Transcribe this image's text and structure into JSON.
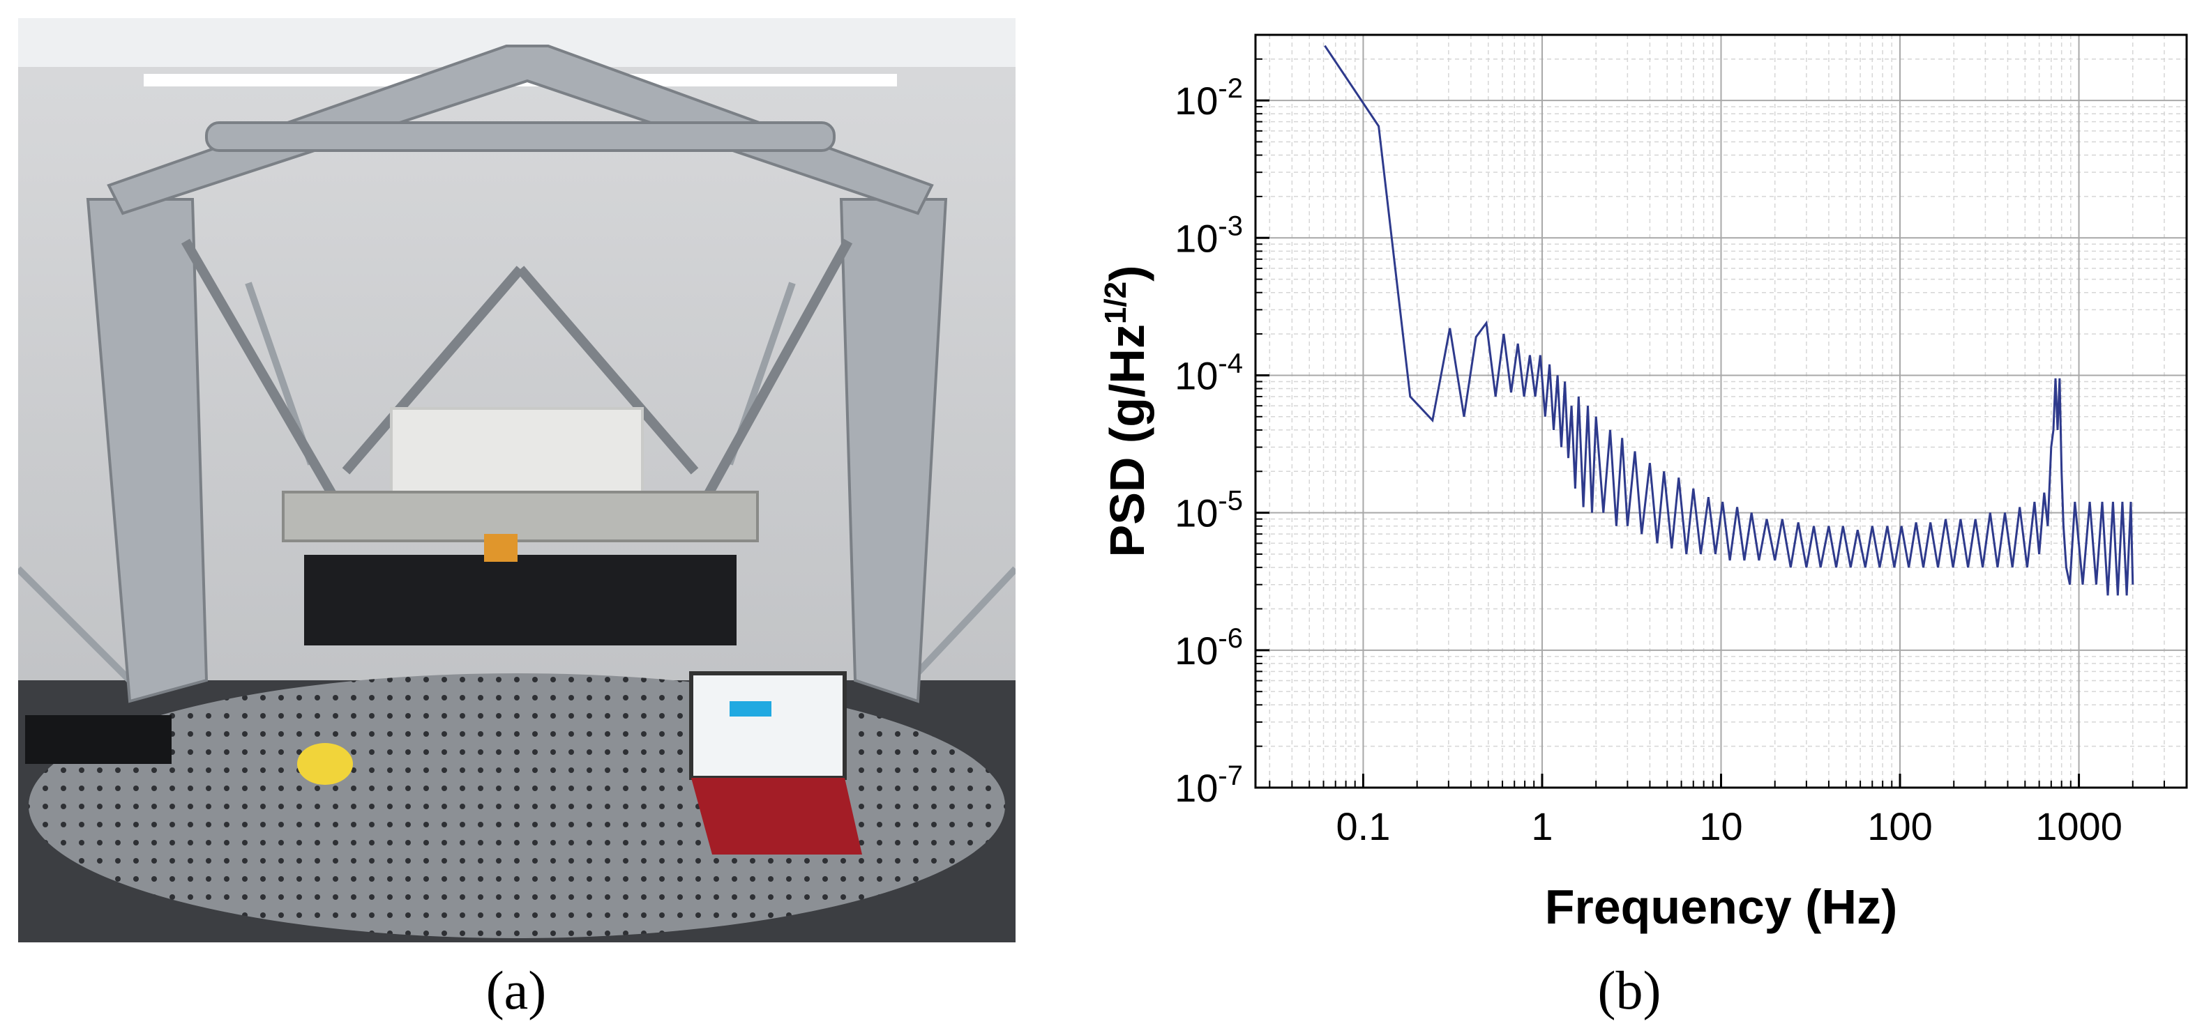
{
  "panel_labels": {
    "a": "(a)",
    "b": "(b)"
  },
  "chart_data": {
    "type": "line",
    "title": "",
    "xlabel": "Frequency (Hz)",
    "ylabel_main": "PSD (g/Hz",
    "ylabel_sup": "1/2",
    "ylabel_close": ")",
    "x_scale": "log",
    "y_scale": "log",
    "xlim": [
      0.025,
      4000
    ],
    "ylim": [
      1e-07,
      0.03
    ],
    "x_ticks": [
      0.1,
      1,
      10,
      100,
      1000
    ],
    "x_tick_labels": [
      "0.1",
      "1",
      "10",
      "100",
      "1000"
    ],
    "y_ticks": [
      1e-07,
      1e-06,
      1e-05,
      0.0001,
      0.001,
      0.01
    ],
    "y_tick_labels": [
      {
        "base": "10",
        "exp": "-7"
      },
      {
        "base": "10",
        "exp": "-6"
      },
      {
        "base": "10",
        "exp": "-5"
      },
      {
        "base": "10",
        "exp": "-4"
      },
      {
        "base": "10",
        "exp": "-3"
      },
      {
        "base": "10",
        "exp": "-2"
      }
    ],
    "grid": true,
    "line_color": "#2e3a8c",
    "series": [
      {
        "x": [
          0.061,
          0.122,
          0.183,
          0.244,
          0.305,
          0.366,
          0.427,
          0.488,
          0.549,
          0.61,
          0.671,
          0.732,
          0.793,
          0.854,
          0.915,
          0.976,
          1.04,
          1.1,
          1.16,
          1.22,
          1.28,
          1.34,
          1.4,
          1.46,
          1.53,
          1.6,
          1.7,
          1.8,
          1.9,
          2.0,
          2.2,
          2.4,
          2.6,
          2.8,
          3.0,
          3.3,
          3.6,
          4.0,
          4.4,
          4.8,
          5.3,
          5.8,
          6.4,
          7.0,
          7.7,
          8.5,
          9.3,
          10.2,
          11.2,
          12.3,
          13.5,
          14.8,
          16.3,
          18,
          20,
          22,
          24.5,
          27,
          30,
          33,
          36,
          40,
          44,
          48,
          53,
          58,
          64,
          70,
          77,
          85,
          93,
          102,
          112,
          123,
          135,
          148,
          163,
          180,
          198,
          218,
          240,
          264,
          290,
          319,
          351,
          386,
          425,
          467,
          514,
          565,
          600,
          640,
          670,
          700,
          720,
          740,
          760,
          780,
          800,
          820,
          850,
          890,
          950,
          1050,
          1150,
          1250,
          1350,
          1450,
          1550,
          1650,
          1750,
          1850,
          1950,
          2000
        ],
        "y": [
          0.025,
          0.0065,
          7e-05,
          4.7e-05,
          0.00022,
          5e-05,
          0.00019,
          0.00024,
          7e-05,
          0.0002,
          7.5e-05,
          0.00017,
          7e-05,
          0.00014,
          7e-05,
          0.00014,
          5e-05,
          0.00012,
          4e-05,
          0.0001,
          3e-05,
          9e-05,
          2.5e-05,
          6e-05,
          1.5e-05,
          7e-05,
          1.1e-05,
          6e-05,
          1e-05,
          5e-05,
          1e-05,
          4e-05,
          8e-06,
          3.5e-05,
          8e-06,
          2.8e-05,
          7e-06,
          2.3e-05,
          6e-06,
          2e-05,
          5.5e-06,
          1.8e-05,
          5e-06,
          1.5e-05,
          5e-06,
          1.3e-05,
          5e-06,
          1.2e-05,
          4.5e-06,
          1.1e-05,
          4.5e-06,
          1e-05,
          4.5e-06,
          9e-06,
          4.5e-06,
          9e-06,
          4e-06,
          8.5e-06,
          4e-06,
          8e-06,
          4e-06,
          8e-06,
          4e-06,
          8e-06,
          4e-06,
          7.5e-06,
          4e-06,
          8e-06,
          4e-06,
          8e-06,
          4e-06,
          8e-06,
          4e-06,
          8.5e-06,
          4e-06,
          8.5e-06,
          4e-06,
          9e-06,
          4e-06,
          9e-06,
          4e-06,
          9e-06,
          4e-06,
          1e-05,
          4e-06,
          1e-05,
          4e-06,
          1.1e-05,
          4e-06,
          1.2e-05,
          5e-06,
          1.4e-05,
          8e-06,
          3e-05,
          4e-05,
          9.5e-05,
          4e-05,
          9.5e-05,
          2e-05,
          8e-06,
          4e-06,
          3e-06,
          1.2e-05,
          3e-06,
          1.2e-05,
          3e-06,
          1.2e-05,
          2.5e-06,
          1.2e-05,
          2.5e-06,
          1.2e-05,
          2.5e-06,
          1.2e-05,
          3e-06
        ]
      }
    ]
  }
}
